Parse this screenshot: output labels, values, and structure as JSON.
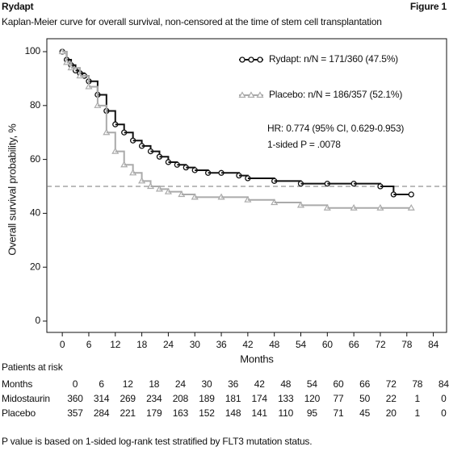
{
  "header": {
    "title": "Rydapt",
    "figure": "Figure 1"
  },
  "chart_data": {
    "type": "step",
    "title": "Kaplan-Meier curve for overall survival, non-censored at the time of stem cell transplantation",
    "x_label": "Months",
    "y_label": "Overall survival probability, %",
    "xlim": [
      -3.5,
      87
    ],
    "ylim": [
      -4.2,
      104.8
    ],
    "xticks": [
      0,
      6,
      12,
      18,
      24,
      30,
      36,
      42,
      48,
      54,
      60,
      66,
      72,
      78,
      84
    ],
    "yticks": [
      0,
      20,
      40,
      60,
      80,
      100
    ],
    "reference_line": 50,
    "series": [
      {
        "name": "Rydapt: n/N = 171/360 (47.5%)",
        "color": "#111111",
        "marker": "circle",
        "x": [
          0,
          1,
          2,
          3,
          4,
          5,
          6,
          8,
          10,
          12,
          14,
          16,
          18,
          20,
          22,
          24,
          26,
          28,
          30,
          33,
          36,
          40,
          42,
          48,
          54,
          60,
          66,
          72,
          75,
          79
        ],
        "values": [
          100,
          97,
          95,
          93,
          92,
          91,
          89,
          84,
          78,
          73,
          70,
          67,
          65,
          63,
          61,
          59,
          58,
          57,
          56,
          55,
          55,
          54,
          53,
          52,
          51,
          51,
          51,
          50,
          47,
          47
        ]
      },
      {
        "name": "Placebo: n/N = 186/357 (52.1%)",
        "color": "#aaaaaa",
        "marker": "triangle",
        "x": [
          0,
          1,
          2,
          4,
          6,
          8,
          10,
          12,
          14,
          16,
          18,
          20,
          22,
          24,
          27,
          30,
          36,
          42,
          48,
          54,
          60,
          66,
          72,
          79
        ],
        "values": [
          100,
          96,
          94,
          91,
          87,
          80,
          70,
          63,
          58,
          55,
          52,
          50,
          49,
          48,
          47,
          46,
          46,
          45,
          44,
          43,
          42,
          42,
          42,
          42
        ]
      }
    ],
    "annotations": [
      "HR: 0.774 (95% CI, 0.629-0.953)",
      "1-sided P = .0078"
    ]
  },
  "risk_table": {
    "title": "Patients at risk",
    "row_label": "Months",
    "months": [
      0,
      6,
      12,
      18,
      24,
      30,
      36,
      42,
      48,
      54,
      60,
      66,
      72,
      78,
      84
    ],
    "rows": [
      {
        "name": "Midostaurin",
        "values": [
          360,
          314,
          269,
          234,
          208,
          189,
          181,
          174,
          133,
          120,
          77,
          50,
          22,
          1,
          0
        ]
      },
      {
        "name": "Placebo",
        "values": [
          357,
          284,
          221,
          179,
          163,
          152,
          148,
          141,
          110,
          95,
          71,
          45,
          20,
          1,
          0
        ]
      }
    ]
  },
  "footnote": "P value is based on 1-sided log-rank test stratified by FLT3 mutation status."
}
